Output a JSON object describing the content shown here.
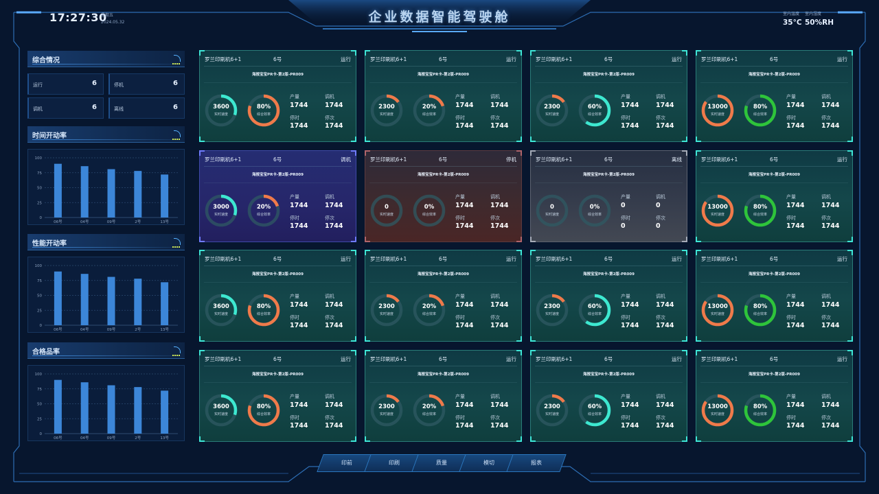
{
  "header": {
    "time": "17:27:30",
    "weekday": "星期五",
    "date": "2024.05.32",
    "title": "企业数据智能驾驶舱",
    "temp_label": "室内温度",
    "temp_value": "35°C",
    "humidity_label": "室内湿度",
    "humidity_value": "50%RH"
  },
  "summary": {
    "title": "综合情况",
    "items": [
      {
        "label": "运行",
        "value": "6"
      },
      {
        "label": "停机",
        "value": "6"
      },
      {
        "label": "调机",
        "value": "6"
      },
      {
        "label": "离线",
        "value": "6"
      }
    ]
  },
  "colors": {
    "bar": "#3c86d8",
    "run_gauge_cyan": "#3de8d0",
    "gauge_orange": "#ef7a4a",
    "gauge_green": "#2ec43a",
    "gauge_track": "#2f5a63"
  },
  "chart_data": [
    {
      "type": "bar",
      "title": "时间开动率",
      "categories": [
        "06号",
        "04号",
        "09号",
        "2号",
        "13号"
      ],
      "values": [
        90,
        86,
        81,
        78,
        72
      ],
      "ylim": [
        0,
        100
      ],
      "yticks": [
        "0",
        "25",
        "50",
        "75",
        "100"
      ],
      "grid": true
    },
    {
      "type": "bar",
      "title": "性能开动率",
      "categories": [
        "06号",
        "04号",
        "09号",
        "2号",
        "13号"
      ],
      "values": [
        90,
        86,
        81,
        78,
        72
      ],
      "ylim": [
        0,
        100
      ],
      "yticks": [
        "0",
        "25",
        "50",
        "75",
        "100"
      ],
      "grid": true
    },
    {
      "type": "bar",
      "title": "合格品率",
      "categories": [
        "06号",
        "04号",
        "09号",
        "2号",
        "13号"
      ],
      "values": [
        90,
        86,
        81,
        78,
        72
      ],
      "ylim": [
        0,
        100
      ],
      "yticks": [
        "0",
        "25",
        "50",
        "75",
        "100"
      ],
      "grid": true
    }
  ],
  "machines": [
    {
      "name": "罗兰印刷机6+1",
      "num": "6号",
      "status": "运行",
      "theme": "run",
      "product": "海报宝宝PR卡-第2版-PR009",
      "speed": "3600",
      "speed_label": "实时速度",
      "speed_frac": 0.3,
      "speed_color": "#3de8d0",
      "eff": "80%",
      "eff_label": "综合效率",
      "eff_frac": 0.8,
      "eff_color": "#ef7a4a",
      "output": "1744",
      "debug": "1744",
      "stop_time": "1744",
      "stop_count": "1744"
    },
    {
      "name": "罗兰印刷机6+1",
      "num": "6号",
      "status": "运行",
      "theme": "run",
      "product": "海报宝宝PR卡-第2版-PR009",
      "speed": "2300",
      "speed_label": "实时速度",
      "speed_frac": 0.15,
      "speed_color": "#ef7a4a",
      "eff": "20%",
      "eff_label": "综合效率",
      "eff_frac": 0.2,
      "eff_color": "#ef7a4a",
      "output": "1744",
      "debug": "1744",
      "stop_time": "1744",
      "stop_count": "1744"
    },
    {
      "name": "罗兰印刷机6+1",
      "num": "6号",
      "status": "运行",
      "theme": "run",
      "product": "海报宝宝PR卡-第2版-PR009",
      "speed": "2300",
      "speed_label": "实时速度",
      "speed_frac": 0.15,
      "speed_color": "#ef7a4a",
      "eff": "60%",
      "eff_label": "综合效率",
      "eff_frac": 0.6,
      "eff_color": "#3de8d0",
      "output": "1744",
      "debug": "1744",
      "stop_time": "1744",
      "stop_count": "1744"
    },
    {
      "name": "罗兰印刷机6+1",
      "num": "6号",
      "status": "运行",
      "theme": "run",
      "product": "海报宝宝PR卡-第2版-PR009",
      "speed": "13000",
      "speed_label": "实时速度",
      "speed_frac": 0.85,
      "speed_color": "#ef7a4a",
      "eff": "80%",
      "eff_label": "综合效率",
      "eff_frac": 0.8,
      "eff_color": "#2ec43a",
      "output": "1744",
      "debug": "1744",
      "stop_time": "1744",
      "stop_count": "1744"
    },
    {
      "name": "罗兰印刷机6+1",
      "num": "6号",
      "status": "调机",
      "theme": "debug",
      "product": "海报宝宝PR卡-第2版-PR009",
      "speed": "3000",
      "speed_label": "实时速度",
      "speed_frac": 0.3,
      "speed_color": "#3de8d0",
      "eff": "20%",
      "eff_label": "综合效率",
      "eff_frac": 0.2,
      "eff_color": "#ef7a4a",
      "output": "1744",
      "debug": "1744",
      "stop_time": "1744",
      "stop_count": "1744"
    },
    {
      "name": "罗兰印刷机6+1",
      "num": "6号",
      "status": "停机",
      "theme": "stop",
      "product": "海报宝宝PR卡-第2版-PR009",
      "speed": "0",
      "speed_label": "实时速度",
      "speed_frac": 0,
      "speed_color": "#ef7a4a",
      "eff": "0%",
      "eff_label": "综合效率",
      "eff_frac": 0,
      "eff_color": "#ef7a4a",
      "output": "1744",
      "debug": "1744",
      "stop_time": "1744",
      "stop_count": "1744"
    },
    {
      "name": "罗兰印刷机6+1",
      "num": "6号",
      "status": "离线",
      "theme": "off",
      "product": "海报宝宝PR卡-第2版-PR009",
      "speed": "0",
      "speed_label": "实时速度",
      "speed_frac": 0,
      "speed_color": "#ef7a4a",
      "eff": "0%",
      "eff_label": "综合效率",
      "eff_frac": 0,
      "eff_color": "#ef7a4a",
      "output": "0",
      "debug": "0",
      "stop_time": "0",
      "stop_count": "0"
    },
    {
      "name": "罗兰印刷机6+1",
      "num": "6号",
      "status": "运行",
      "theme": "run",
      "product": "海报宝宝PR卡-第2版-PR009",
      "speed": "13000",
      "speed_label": "实时速度",
      "speed_frac": 0.85,
      "speed_color": "#ef7a4a",
      "eff": "80%",
      "eff_label": "综合效率",
      "eff_frac": 0.8,
      "eff_color": "#2ec43a",
      "output": "1744",
      "debug": "1744",
      "stop_time": "1744",
      "stop_count": "1744"
    },
    {
      "name": "罗兰印刷机6+1",
      "num": "6号",
      "status": "运行",
      "theme": "run",
      "product": "海报宝宝PR卡-第2版-PR009",
      "speed": "3600",
      "speed_label": "实时速度",
      "speed_frac": 0.3,
      "speed_color": "#3de8d0",
      "eff": "80%",
      "eff_label": "综合效率",
      "eff_frac": 0.8,
      "eff_color": "#ef7a4a",
      "output": "1744",
      "debug": "1744",
      "stop_time": "1744",
      "stop_count": "1744"
    },
    {
      "name": "罗兰印刷机6+1",
      "num": "6号",
      "status": "运行",
      "theme": "run",
      "product": "海报宝宝PR卡-第2版-PR009",
      "speed": "2300",
      "speed_label": "实时速度",
      "speed_frac": 0.15,
      "speed_color": "#ef7a4a",
      "eff": "20%",
      "eff_label": "综合效率",
      "eff_frac": 0.2,
      "eff_color": "#ef7a4a",
      "output": "1744",
      "debug": "1744",
      "stop_time": "1744",
      "stop_count": "1744"
    },
    {
      "name": "罗兰印刷机6+1",
      "num": "6号",
      "status": "运行",
      "theme": "run",
      "product": "海报宝宝PR卡-第2版-PR009",
      "speed": "2300",
      "speed_label": "实时速度",
      "speed_frac": 0.15,
      "speed_color": "#ef7a4a",
      "eff": "60%",
      "eff_label": "综合效率",
      "eff_frac": 0.6,
      "eff_color": "#3de8d0",
      "output": "1744",
      "debug": "1744",
      "stop_time": "1744",
      "stop_count": "1744"
    },
    {
      "name": "罗兰印刷机6+1",
      "num": "6号",
      "status": "运行",
      "theme": "run",
      "product": "海报宝宝PR卡-第2版-PR009",
      "speed": "13000",
      "speed_label": "实时速度",
      "speed_frac": 0.85,
      "speed_color": "#ef7a4a",
      "eff": "80%",
      "eff_label": "综合效率",
      "eff_frac": 0.8,
      "eff_color": "#2ec43a",
      "output": "1744",
      "debug": "1744",
      "stop_time": "1744",
      "stop_count": "1744"
    },
    {
      "name": "罗兰印刷机6+1",
      "num": "6号",
      "status": "运行",
      "theme": "run",
      "product": "海报宝宝PR卡-第2版-PR009",
      "speed": "3600",
      "speed_label": "实时速度",
      "speed_frac": 0.3,
      "speed_color": "#3de8d0",
      "eff": "80%",
      "eff_label": "综合效率",
      "eff_frac": 0.8,
      "eff_color": "#ef7a4a",
      "output": "1744",
      "debug": "1744",
      "stop_time": "1744",
      "stop_count": "1744"
    },
    {
      "name": "罗兰印刷机6+1",
      "num": "6号",
      "status": "运行",
      "theme": "run",
      "product": "海报宝宝PR卡-第2版-PR009",
      "speed": "2300",
      "speed_label": "实时速度",
      "speed_frac": 0.15,
      "speed_color": "#ef7a4a",
      "eff": "20%",
      "eff_label": "综合效率",
      "eff_frac": 0.2,
      "eff_color": "#ef7a4a",
      "output": "1744",
      "debug": "1744",
      "stop_time": "1744",
      "stop_count": "1744"
    },
    {
      "name": "罗兰印刷机6+1",
      "num": "6号",
      "status": "运行",
      "theme": "run",
      "product": "海报宝宝PR卡-第2版-PR009",
      "speed": "2300",
      "speed_label": "实时速度",
      "speed_frac": 0.15,
      "speed_color": "#ef7a4a",
      "eff": "60%",
      "eff_label": "综合效率",
      "eff_frac": 0.6,
      "eff_color": "#3de8d0",
      "output": "1744",
      "debug": "1744",
      "stop_time": "1744",
      "stop_count": "1744"
    },
    {
      "name": "罗兰印刷机6+1",
      "num": "6号",
      "status": "运行",
      "theme": "run",
      "product": "海报宝宝PR卡-第2版-PR009",
      "speed": "13000",
      "speed_label": "实时速度",
      "speed_frac": 0.85,
      "speed_color": "#ef7a4a",
      "eff": "80%",
      "eff_label": "综合效率",
      "eff_frac": 0.8,
      "eff_color": "#2ec43a",
      "output": "1744",
      "debug": "1744",
      "stop_time": "1744",
      "stop_count": "1744"
    }
  ],
  "labels": {
    "output": "产量",
    "debug": "调机",
    "stop_time": "停时",
    "stop_count": "停次"
  },
  "nav": [
    "印前",
    "印刷",
    "质量",
    "模切",
    "报表"
  ]
}
